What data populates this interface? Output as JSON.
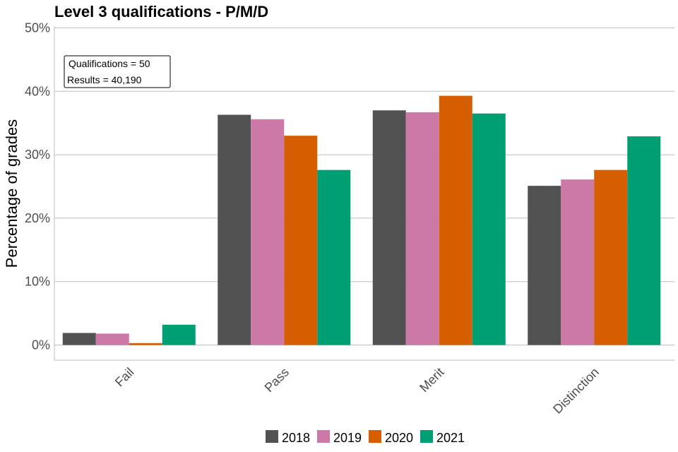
{
  "chart_data": {
    "type": "bar",
    "title": "Level 3 qualifications  - P/M/D",
    "ylabel": "Percentage of grades",
    "xlabel": "",
    "categories": [
      "Fail",
      "Pass",
      "Merit",
      "Distinction"
    ],
    "ylim": [
      0,
      50
    ],
    "yticks": [
      "0%",
      "10%",
      "20%",
      "30%",
      "40%",
      "50%"
    ],
    "grid": "horizontal",
    "legend_position": "bottom",
    "series": [
      {
        "name": "2018",
        "color": "#525252",
        "values": [
          1.9,
          36.3,
          37.0,
          25.1
        ]
      },
      {
        "name": "2019",
        "color": "#cc79a7",
        "values": [
          1.8,
          35.6,
          36.7,
          26.1
        ]
      },
      {
        "name": "2020",
        "color": "#d55e00",
        "values": [
          0.3,
          33.0,
          39.3,
          27.6
        ]
      },
      {
        "name": "2021",
        "color": "#009e73",
        "values": [
          3.2,
          27.6,
          36.5,
          32.9
        ]
      }
    ],
    "annotation": [
      "Qualifications = 50",
      "Results = 40,190"
    ]
  }
}
